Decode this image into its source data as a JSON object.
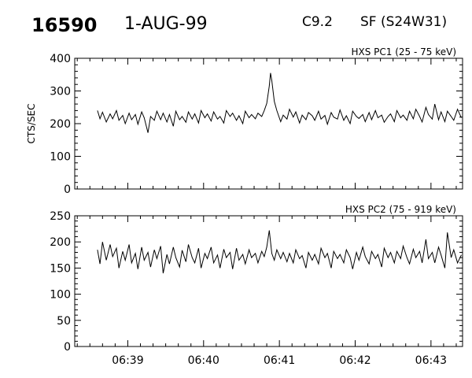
{
  "header": {
    "event_id": "16590",
    "date": "1-AUG-99",
    "flare_class": "C9.2",
    "location": "SF (S24W31)"
  },
  "chart_data": [
    {
      "type": "line",
      "title": "HXS PC1 (25 - 75 keV)",
      "ylabel": "CTS/SEC",
      "xlabel": "",
      "ylim": [
        0,
        400
      ],
      "yticks": [
        0,
        100,
        200,
        300,
        400
      ],
      "xlim": [
        "06:38:18",
        "06:43:25"
      ],
      "xticks": [
        "06:39",
        "06:40",
        "06:41",
        "06:42",
        "06:43"
      ],
      "grid": false,
      "series": [
        {
          "x": [
            "06:38:36",
            "06:38:38",
            "06:38:40",
            "06:38:43",
            "06:38:46",
            "06:38:48",
            "06:38:51",
            "06:38:53",
            "06:38:56",
            "06:38:58",
            "06:39:01",
            "06:39:03",
            "06:39:06",
            "06:39:08",
            "06:39:11",
            "06:39:13",
            "06:39:16",
            "06:39:18",
            "06:39:21",
            "06:39:23",
            "06:39:26",
            "06:39:28",
            "06:39:31",
            "06:39:33",
            "06:39:36",
            "06:39:38",
            "06:39:41",
            "06:39:43",
            "06:39:46",
            "06:39:48",
            "06:39:51",
            "06:39:53",
            "06:39:56",
            "06:39:58",
            "06:40:01",
            "06:40:03",
            "06:40:06",
            "06:40:08",
            "06:40:11",
            "06:40:13",
            "06:40:16",
            "06:40:18",
            "06:40:21",
            "06:40:23",
            "06:40:26",
            "06:40:28",
            "06:40:31",
            "06:40:33",
            "06:40:36",
            "06:40:38",
            "06:40:41",
            "06:40:43",
            "06:40:46",
            "06:40:48",
            "06:40:50",
            "06:40:52",
            "06:40:53",
            "06:40:54",
            "06:40:56",
            "06:40:58",
            "06:41:01",
            "06:41:03",
            "06:41:06",
            "06:41:08",
            "06:41:11",
            "06:41:13",
            "06:41:16",
            "06:41:18",
            "06:41:21",
            "06:41:23",
            "06:41:26",
            "06:41:28",
            "06:41:31",
            "06:41:33",
            "06:41:36",
            "06:41:38",
            "06:41:41",
            "06:41:43",
            "06:41:46",
            "06:41:48",
            "06:41:51",
            "06:41:53",
            "06:41:56",
            "06:41:58",
            "06:42:01",
            "06:42:03",
            "06:42:06",
            "06:42:08",
            "06:42:11",
            "06:42:13",
            "06:42:16",
            "06:42:18",
            "06:42:21",
            "06:42:23",
            "06:42:26",
            "06:42:28",
            "06:42:31",
            "06:42:33",
            "06:42:36",
            "06:42:38",
            "06:42:41",
            "06:42:43",
            "06:42:46",
            "06:42:48",
            "06:42:51",
            "06:42:53",
            "06:42:56",
            "06:42:58",
            "06:43:01",
            "06:43:03",
            "06:43:06",
            "06:43:08",
            "06:43:11",
            "06:43:13",
            "06:43:16",
            "06:43:18",
            "06:43:21",
            "06:43:24"
          ],
          "values": [
            240,
            215,
            235,
            205,
            230,
            215,
            240,
            210,
            225,
            200,
            232,
            212,
            228,
            198,
            236,
            218,
            172,
            222,
            210,
            238,
            212,
            232,
            205,
            228,
            192,
            238,
            212,
            222,
            204,
            236,
            214,
            230,
            202,
            240,
            218,
            230,
            208,
            236,
            214,
            222,
            202,
            240,
            222,
            232,
            210,
            224,
            200,
            238,
            218,
            228,
            215,
            232,
            222,
            240,
            262,
            315,
            355,
            332,
            268,
            240,
            206,
            226,
            214,
            244,
            220,
            236,
            202,
            226,
            212,
            234,
            224,
            210,
            238,
            214,
            225,
            198,
            234,
            220,
            214,
            242,
            210,
            224,
            200,
            238,
            222,
            216,
            228,
            206,
            234,
            212,
            240,
            218,
            226,
            204,
            222,
            230,
            206,
            240,
            218,
            226,
            210,
            238,
            215,
            244,
            222,
            205,
            250,
            228,
            214,
            260,
            212,
            236,
            206,
            238,
            222,
            210,
            244,
            218
          ]
        }
      ]
    },
    {
      "type": "line",
      "title": "HXS PC2 (75 - 919 keV)",
      "ylabel": "",
      "xlabel": "",
      "ylim": [
        0,
        250
      ],
      "yticks": [
        0,
        50,
        100,
        150,
        200,
        250
      ],
      "xlim": [
        "06:38:18",
        "06:43:25"
      ],
      "xticks": [
        "06:39",
        "06:40",
        "06:41",
        "06:42",
        "06:43"
      ],
      "grid": false,
      "series": [
        {
          "x": [
            "06:38:36",
            "06:38:38",
            "06:38:40",
            "06:38:43",
            "06:38:46",
            "06:38:48",
            "06:38:51",
            "06:38:53",
            "06:38:56",
            "06:38:58",
            "06:39:01",
            "06:39:03",
            "06:39:06",
            "06:39:08",
            "06:39:11",
            "06:39:13",
            "06:39:16",
            "06:39:18",
            "06:39:21",
            "06:39:23",
            "06:39:26",
            "06:39:28",
            "06:39:31",
            "06:39:33",
            "06:39:36",
            "06:39:38",
            "06:39:41",
            "06:39:43",
            "06:39:46",
            "06:39:48",
            "06:39:51",
            "06:39:53",
            "06:39:56",
            "06:39:58",
            "06:40:01",
            "06:40:03",
            "06:40:06",
            "06:40:08",
            "06:40:11",
            "06:40:13",
            "06:40:16",
            "06:40:18",
            "06:40:21",
            "06:40:23",
            "06:40:26",
            "06:40:28",
            "06:40:31",
            "06:40:33",
            "06:40:36",
            "06:40:38",
            "06:40:41",
            "06:40:43",
            "06:40:46",
            "06:40:48",
            "06:40:50",
            "06:40:52",
            "06:40:53",
            "06:40:54",
            "06:40:56",
            "06:40:58",
            "06:41:01",
            "06:41:03",
            "06:41:06",
            "06:41:08",
            "06:41:11",
            "06:41:13",
            "06:41:16",
            "06:41:18",
            "06:41:21",
            "06:41:23",
            "06:41:26",
            "06:41:28",
            "06:41:31",
            "06:41:33",
            "06:41:36",
            "06:41:38",
            "06:41:41",
            "06:41:43",
            "06:41:46",
            "06:41:48",
            "06:41:51",
            "06:41:53",
            "06:41:56",
            "06:41:58",
            "06:42:01",
            "06:42:03",
            "06:42:06",
            "06:42:08",
            "06:42:11",
            "06:42:13",
            "06:42:16",
            "06:42:18",
            "06:42:21",
            "06:42:23",
            "06:42:26",
            "06:42:28",
            "06:42:31",
            "06:42:33",
            "06:42:36",
            "06:42:38",
            "06:42:41",
            "06:42:43",
            "06:42:46",
            "06:42:48",
            "06:42:51",
            "06:42:53",
            "06:42:56",
            "06:42:58",
            "06:43:01",
            "06:43:03",
            "06:43:06",
            "06:43:08",
            "06:43:11",
            "06:43:13",
            "06:43:16",
            "06:43:18",
            "06:43:21",
            "06:43:24"
          ],
          "values": [
            185,
            158,
            200,
            165,
            195,
            172,
            188,
            150,
            182,
            165,
            195,
            160,
            178,
            148,
            190,
            165,
            180,
            152,
            185,
            168,
            192,
            140,
            176,
            158,
            190,
            170,
            152,
            184,
            162,
            195,
            170,
            160,
            188,
            150,
            178,
            168,
            190,
            160,
            175,
            150,
            186,
            170,
            180,
            148,
            188,
            165,
            176,
            158,
            185,
            170,
            178,
            160,
            182,
            172,
            190,
            222,
            200,
            178,
            165,
            185,
            168,
            180,
            162,
            178,
            160,
            185,
            168,
            174,
            150,
            180,
            165,
            176,
            158,
            188,
            170,
            178,
            150,
            182,
            168,
            176,
            160,
            185,
            170,
            148,
            180,
            165,
            190,
            172,
            158,
            182,
            168,
            176,
            152,
            188,
            170,
            180,
            160,
            182,
            168,
            192,
            170,
            158,
            186,
            170,
            182,
            160,
            205,
            168,
            180,
            160,
            190,
            175,
            150,
            218,
            170,
            185,
            160,
            175
          ]
        }
      ]
    }
  ]
}
